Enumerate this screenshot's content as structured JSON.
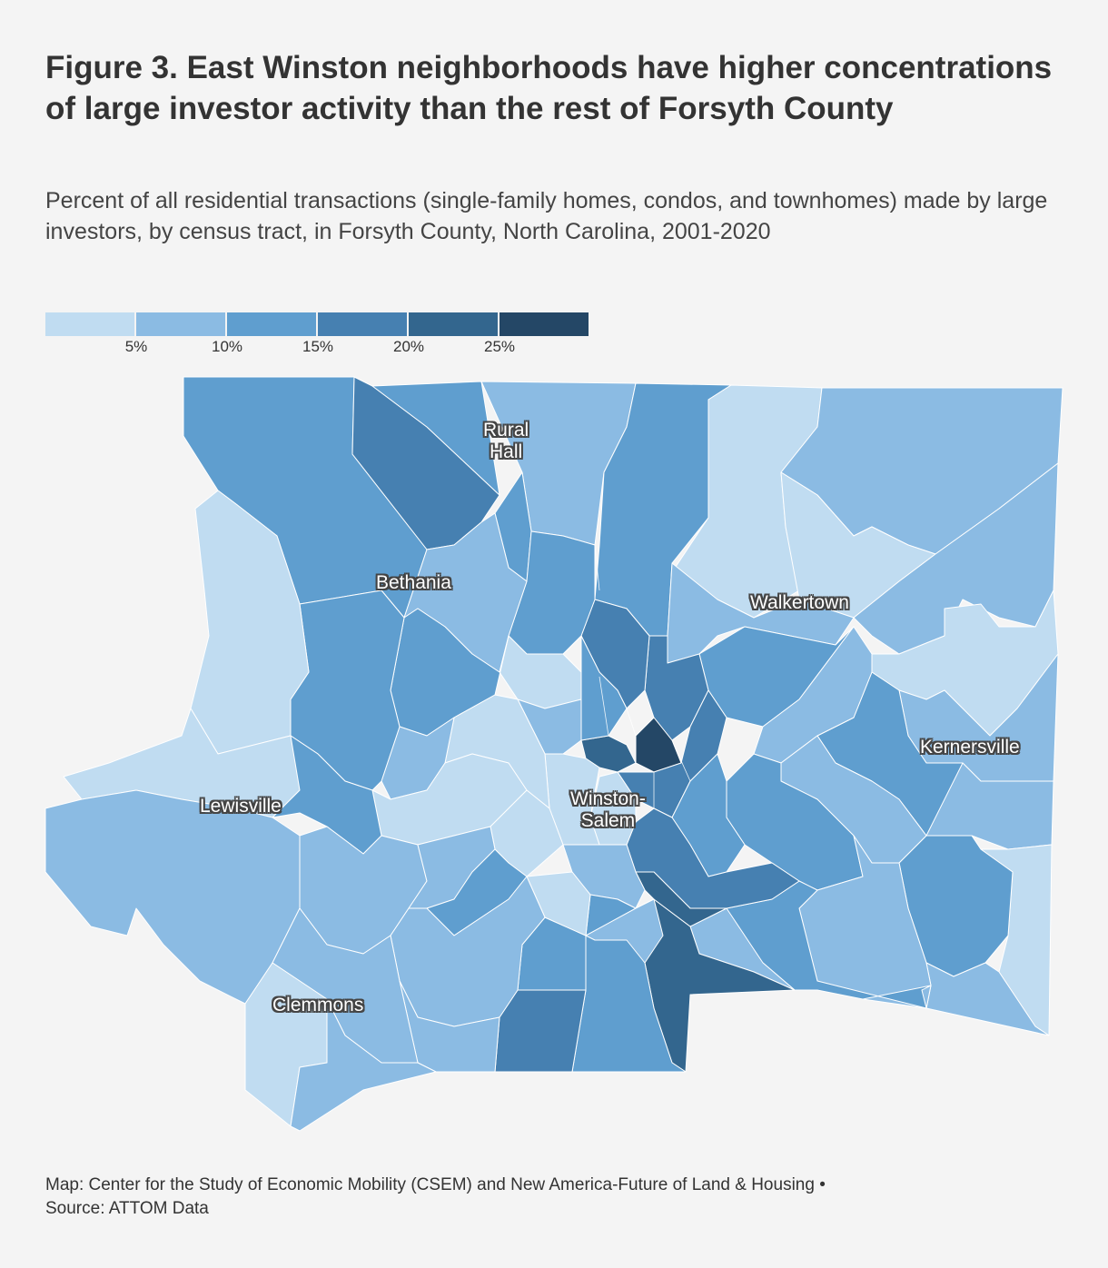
{
  "title": "Figure 3. East Winston neighborhoods have higher concentrations of large investor activity than the rest of Forsyth County",
  "subtitle": "Percent of all residential transactions (single-family homes, condos, and townhomes) made by large investors, by census tract, in Forsyth County, North Carolina, 2001-2020",
  "legend": {
    "colors": [
      "#c0dcf1",
      "#8bbbe3",
      "#5f9ecf",
      "#4680b1",
      "#33668e",
      "#244766"
    ],
    "ticks": [
      "5%",
      "10%",
      "15%",
      "20%",
      "25%"
    ]
  },
  "map": {
    "colors": {
      "lightest": "#c0dcf1",
      "light": "#8bbbe3",
      "mid": "#5f9ecf",
      "dark": "#4680b1",
      "darker": "#33668e",
      "darkest": "#244766"
    },
    "places": [
      "Rural Hall",
      "Bethania",
      "Walkertown",
      "Kernersville",
      "Lewisville",
      "Winston-Salem",
      "Clemmons"
    ],
    "labels": {
      "rural": "Rural",
      "hall": "Hall",
      "bethania": "Bethania",
      "walkertown": "Walkertown",
      "kernersville": "Kernersville",
      "lewisville": "Lewisville",
      "winston": "Winston-",
      "salem": "Salem",
      "clemmons": "Clemmons"
    }
  },
  "caption": {
    "line1": "Map: Center for the Study of Economic Mobility (CSEM) and New America-Future of Land & Housing •",
    "line2": "Source: ATTOM Data"
  }
}
